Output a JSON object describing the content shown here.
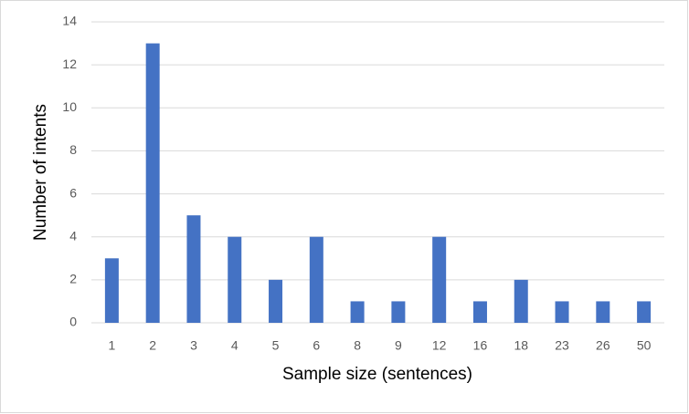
{
  "chart_data": {
    "type": "bar",
    "x_label": "Sample size (sentences)",
    "y_label": "Number of intents",
    "categories": [
      "1",
      "2",
      "3",
      "4",
      "5",
      "6",
      "8",
      "9",
      "12",
      "16",
      "18",
      "23",
      "26",
      "50"
    ],
    "values": [
      3,
      13,
      5,
      4,
      2,
      4,
      1,
      1,
      4,
      1,
      2,
      1,
      1,
      1
    ],
    "color": "#4472c4",
    "ylim": [
      0,
      14
    ],
    "yticks": [
      0,
      2,
      4,
      6,
      8,
      10,
      12,
      14
    ],
    "grid": true
  }
}
